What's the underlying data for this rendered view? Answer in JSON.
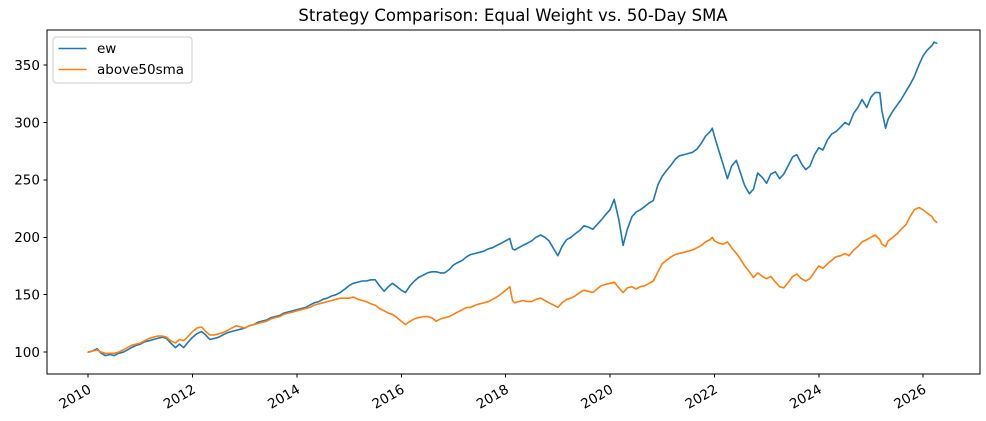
{
  "figure": {
    "title": "Strategy Comparison: Equal Weight vs. 50-Day SMA",
    "background": "#ffffff"
  },
  "legend": {
    "position": "upper left",
    "items": [
      {
        "label": "ew",
        "color": "#1f77b4"
      },
      {
        "label": "above50sma",
        "color": "#ff7f0e"
      }
    ]
  },
  "chart_data": {
    "type": "line",
    "title": "Strategy Comparison: Equal Weight vs. 50-Day SMA",
    "xlabel": "",
    "ylabel": "",
    "grid": false,
    "legend_position": "upper left",
    "xlim": [
      2009.21,
      2027.09
    ],
    "ylim": [
      81,
      380.5
    ],
    "x_ticks": [
      2010,
      2012,
      2014,
      2016,
      2018,
      2020,
      2022,
      2024,
      2026
    ],
    "y_ticks": [
      100,
      150,
      200,
      250,
      300,
      350
    ],
    "x": [
      2010.0,
      2010.08,
      2010.17,
      2010.25,
      2010.33,
      2010.42,
      2010.5,
      2010.58,
      2010.67,
      2010.75,
      2010.83,
      2010.92,
      2011.0,
      2011.08,
      2011.17,
      2011.25,
      2011.33,
      2011.42,
      2011.5,
      2011.58,
      2011.67,
      2011.75,
      2011.83,
      2011.92,
      2012.0,
      2012.08,
      2012.17,
      2012.25,
      2012.33,
      2012.42,
      2012.5,
      2012.58,
      2012.67,
      2012.75,
      2012.83,
      2012.92,
      2013.0,
      2013.08,
      2013.17,
      2013.25,
      2013.33,
      2013.42,
      2013.5,
      2013.58,
      2013.67,
      2013.75,
      2013.83,
      2013.92,
      2014.0,
      2014.08,
      2014.17,
      2014.25,
      2014.33,
      2014.42,
      2014.5,
      2014.58,
      2014.67,
      2014.75,
      2014.83,
      2014.92,
      2015.0,
      2015.08,
      2015.17,
      2015.25,
      2015.33,
      2015.42,
      2015.5,
      2015.58,
      2015.67,
      2015.75,
      2015.83,
      2015.92,
      2016.0,
      2016.08,
      2016.17,
      2016.25,
      2016.33,
      2016.42,
      2016.5,
      2016.58,
      2016.67,
      2016.75,
      2016.83,
      2016.92,
      2017.0,
      2017.08,
      2017.17,
      2017.25,
      2017.33,
      2017.42,
      2017.5,
      2017.58,
      2017.67,
      2017.75,
      2017.83,
      2017.92,
      2018.0,
      2018.08,
      2018.13,
      2018.17,
      2018.25,
      2018.33,
      2018.42,
      2018.5,
      2018.58,
      2018.67,
      2018.75,
      2018.83,
      2018.92,
      2019.0,
      2019.08,
      2019.17,
      2019.25,
      2019.33,
      2019.42,
      2019.5,
      2019.58,
      2019.67,
      2019.75,
      2019.83,
      2019.92,
      2020.0,
      2020.08,
      2020.17,
      2020.25,
      2020.33,
      2020.42,
      2020.5,
      2020.58,
      2020.67,
      2020.75,
      2020.83,
      2020.92,
      2021.0,
      2021.08,
      2021.17,
      2021.25,
      2021.33,
      2021.42,
      2021.5,
      2021.58,
      2021.67,
      2021.75,
      2021.83,
      2021.92,
      2021.96,
      2022.0,
      2022.08,
      2022.17,
      2022.25,
      2022.33,
      2022.42,
      2022.5,
      2022.58,
      2022.67,
      2022.75,
      2022.83,
      2022.92,
      2023.0,
      2023.08,
      2023.17,
      2023.25,
      2023.33,
      2023.42,
      2023.5,
      2023.58,
      2023.67,
      2023.75,
      2023.83,
      2023.92,
      2024.0,
      2024.08,
      2024.17,
      2024.25,
      2024.33,
      2024.42,
      2024.5,
      2024.58,
      2024.67,
      2024.75,
      2024.83,
      2024.92,
      2025.0,
      2025.08,
      2025.17,
      2025.21,
      2025.28,
      2025.33,
      2025.42,
      2025.5,
      2025.58,
      2025.67,
      2025.75,
      2025.83,
      2025.92,
      2026.0,
      2026.08,
      2026.17,
      2026.21,
      2026.26
    ],
    "series": [
      {
        "name": "ew",
        "color": "#1f77b4",
        "values": [
          100,
          101,
          103,
          99,
          97,
          98,
          97,
          99,
          100,
          102,
          104,
          106,
          107,
          109,
          110,
          111,
          112,
          113,
          112,
          108,
          104,
          107,
          104,
          109,
          113,
          116,
          118,
          115,
          111,
          112,
          113,
          115,
          117,
          118,
          119,
          120,
          121,
          123,
          124,
          126,
          127,
          128,
          130,
          131,
          132,
          134,
          135,
          136,
          137,
          138,
          139,
          141,
          143,
          144,
          146,
          147,
          149,
          150,
          152,
          155,
          158,
          160,
          161,
          162,
          162,
          163,
          163,
          158,
          153,
          157,
          160,
          157,
          154,
          152,
          158,
          162,
          165,
          167,
          169,
          170,
          170,
          169,
          169,
          172,
          176,
          178,
          180,
          183,
          185,
          186,
          187,
          188,
          190,
          191,
          193,
          195,
          197,
          199,
          190,
          189,
          191,
          193,
          195,
          197,
          200,
          202,
          200,
          197,
          190,
          184,
          192,
          198,
          200,
          203,
          206,
          210,
          209,
          207,
          211,
          215,
          220,
          224,
          233,
          215,
          193,
          207,
          218,
          222,
          224,
          227,
          230,
          232,
          246,
          253,
          258,
          263,
          268,
          271,
          272,
          273,
          274,
          277,
          282,
          288,
          292,
          295,
          288,
          276,
          263,
          251,
          262,
          267,
          256,
          245,
          238,
          242,
          256,
          252,
          247,
          255,
          257,
          251,
          255,
          263,
          270,
          272,
          264,
          259,
          262,
          272,
          278,
          276,
          285,
          290,
          292,
          296,
          300,
          298,
          308,
          313,
          320,
          313,
          322,
          326,
          326,
          310,
          295,
          303,
          310,
          315,
          320,
          327,
          333,
          340,
          350,
          358,
          363,
          367,
          370,
          369
        ]
      },
      {
        "name": "above50sma",
        "color": "#ff7f0e",
        "values": [
          100,
          101,
          102,
          100,
          99,
          99,
          99,
          100,
          102,
          104,
          106,
          107,
          108,
          110,
          112,
          113,
          114,
          114,
          113,
          110,
          108,
          111,
          110,
          114,
          118,
          121,
          122,
          118,
          115,
          115,
          116,
          117,
          119,
          121,
          123,
          122,
          121,
          123,
          124,
          125,
          126,
          127,
          129,
          130,
          131,
          133,
          134,
          135,
          136,
          137,
          138,
          139,
          141,
          142,
          143,
          144,
          145,
          146,
          147,
          147,
          147,
          148,
          146,
          145,
          144,
          142,
          141,
          138,
          136,
          134,
          133,
          130,
          127,
          124,
          127,
          129,
          130,
          131,
          131,
          130,
          127,
          129,
          130,
          131,
          133,
          135,
          137,
          139,
          139,
          141,
          142,
          143,
          144,
          146,
          148,
          151,
          154,
          157,
          145,
          143,
          144,
          145,
          144,
          144,
          146,
          147,
          145,
          143,
          141,
          139,
          143,
          146,
          147,
          149,
          152,
          154,
          153,
          152,
          155,
          158,
          159,
          160,
          161,
          156,
          152,
          156,
          157,
          155,
          157,
          158,
          160,
          162,
          170,
          177,
          180,
          183,
          185,
          186,
          187,
          188,
          189,
          191,
          193,
          196,
          198,
          200,
          197,
          195,
          194,
          196,
          191,
          186,
          181,
          175,
          170,
          165,
          169,
          166,
          164,
          166,
          161,
          157,
          156,
          161,
          166,
          168,
          164,
          162,
          164,
          170,
          175,
          173,
          177,
          180,
          183,
          184,
          186,
          184,
          189,
          192,
          196,
          198,
          200,
          202,
          198,
          194,
          192,
          197,
          200,
          203,
          207,
          211,
          218,
          224,
          226,
          224,
          221,
          218,
          215,
          213
        ]
      }
    ]
  }
}
